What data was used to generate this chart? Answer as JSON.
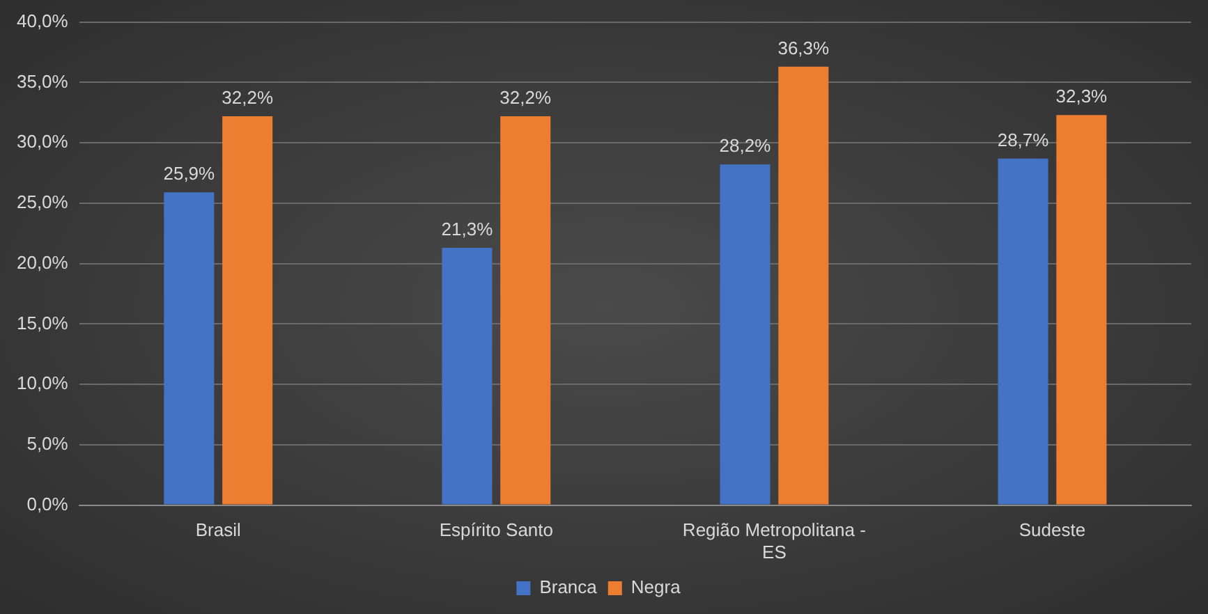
{
  "chart_data": {
    "type": "bar",
    "categories": [
      "Brasil",
      "Espírito Santo",
      "Região Metropolitana - ES",
      "Sudeste"
    ],
    "series": [
      {
        "name": "Branca",
        "color": "#4472c4",
        "values": [
          25.9,
          21.3,
          28.2,
          28.7
        ],
        "value_labels": [
          "25,9%",
          "21,3%",
          "28,2%",
          "28,7%"
        ]
      },
      {
        "name": "Negra",
        "color": "#ed7d31",
        "values": [
          32.2,
          32.2,
          36.3,
          32.3
        ],
        "value_labels": [
          "32,2%",
          "32,2%",
          "36,3%",
          "32,3%"
        ]
      }
    ],
    "ylim": [
      0,
      40
    ],
    "yticks": [
      {
        "value": 0,
        "label": "0,0%"
      },
      {
        "value": 5,
        "label": "5,0%"
      },
      {
        "value": 10,
        "label": "10,0%"
      },
      {
        "value": 15,
        "label": "15,0%"
      },
      {
        "value": 20,
        "label": "20,0%"
      },
      {
        "value": 25,
        "label": "25,0%"
      },
      {
        "value": 30,
        "label": "30,0%"
      },
      {
        "value": 35,
        "label": "35,0%"
      },
      {
        "value": 40,
        "label": "40,0%"
      }
    ],
    "grid": "y",
    "legend": "bottom"
  }
}
